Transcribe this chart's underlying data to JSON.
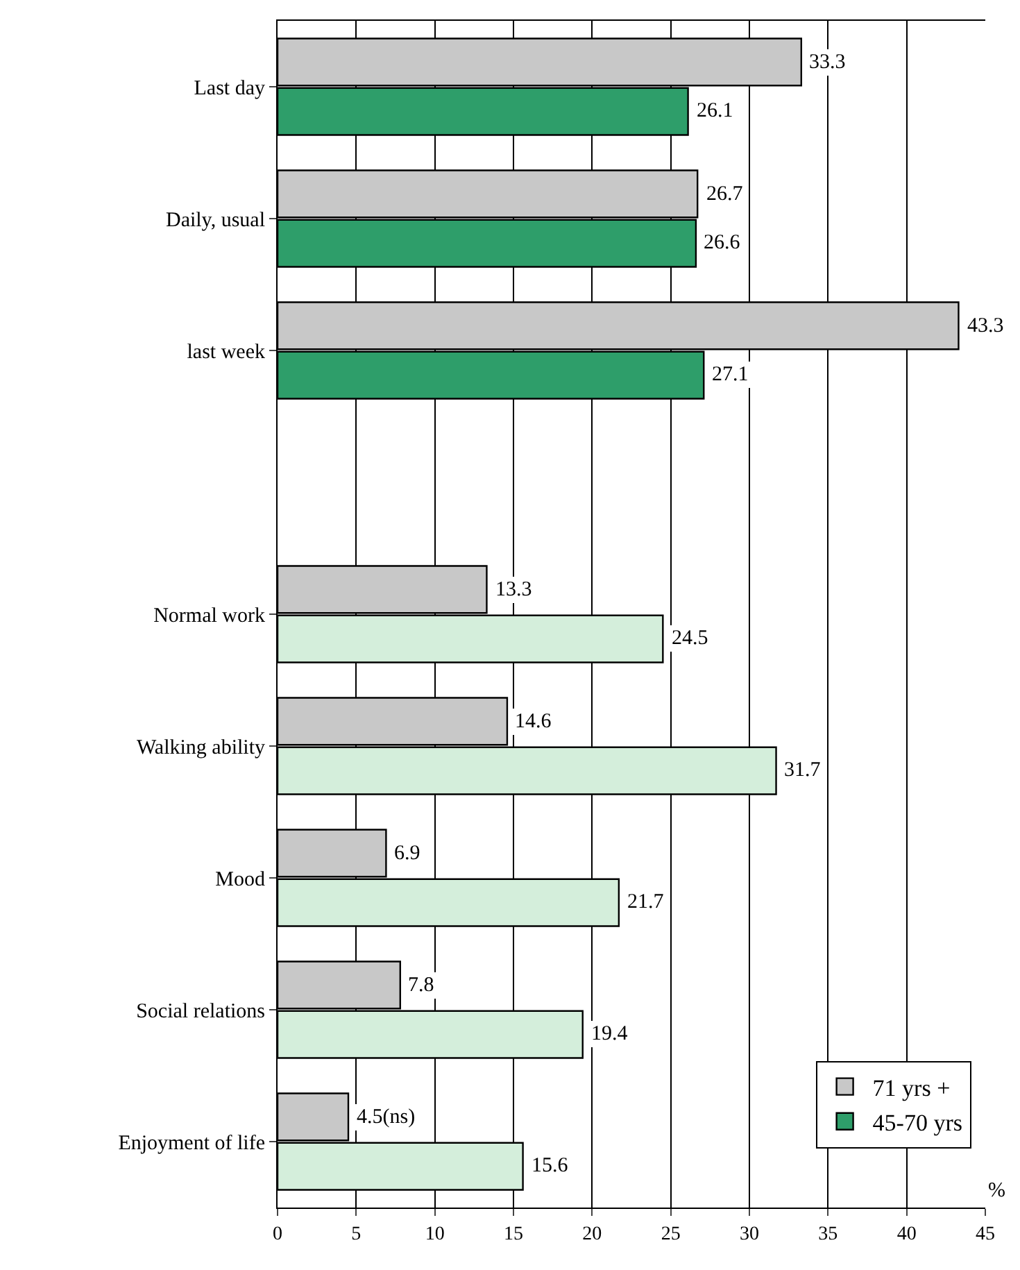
{
  "chart_data": {
    "type": "bar",
    "orientation": "horizontal",
    "xlabel": "%",
    "categories": [
      "Last day",
      "Daily, usual",
      "last week",
      null,
      "Normal work",
      "Walking ability",
      "Mood",
      "Social relations",
      "Enjoyment of life"
    ],
    "series": [
      {
        "name": "71 yrs +",
        "color": "#c8c8c8",
        "values": [
          33.3,
          26.7,
          43.3,
          null,
          13.3,
          14.6,
          6.9,
          7.8,
          4.5
        ],
        "value_labels": [
          "33.3",
          "26.7",
          "43.3",
          null,
          "13.3",
          "14.6",
          "6.9",
          "7.8",
          "4.5(ns)"
        ]
      },
      {
        "name": "45-70 yrs",
        "color": "#2e9e6a",
        "colors": [
          "#2e9e6a",
          "#2e9e6a",
          "#2e9e6a",
          null,
          "#d4eedb",
          "#d4eedb",
          "#d4eedb",
          "#d4eedb",
          "#d4eedb"
        ],
        "values": [
          26.1,
          26.6,
          27.1,
          null,
          24.5,
          31.7,
          21.7,
          19.4,
          15.6
        ],
        "value_labels": [
          "26.1",
          "26.6",
          "27.1",
          null,
          "24.5",
          "31.7",
          "21.7",
          "19.4",
          "15.6"
        ]
      }
    ],
    "xlim": [
      0,
      45
    ],
    "xticks": [
      0,
      5,
      10,
      15,
      20,
      25,
      30,
      35,
      40,
      45
    ],
    "grid": "x",
    "legend": "bottom right"
  }
}
